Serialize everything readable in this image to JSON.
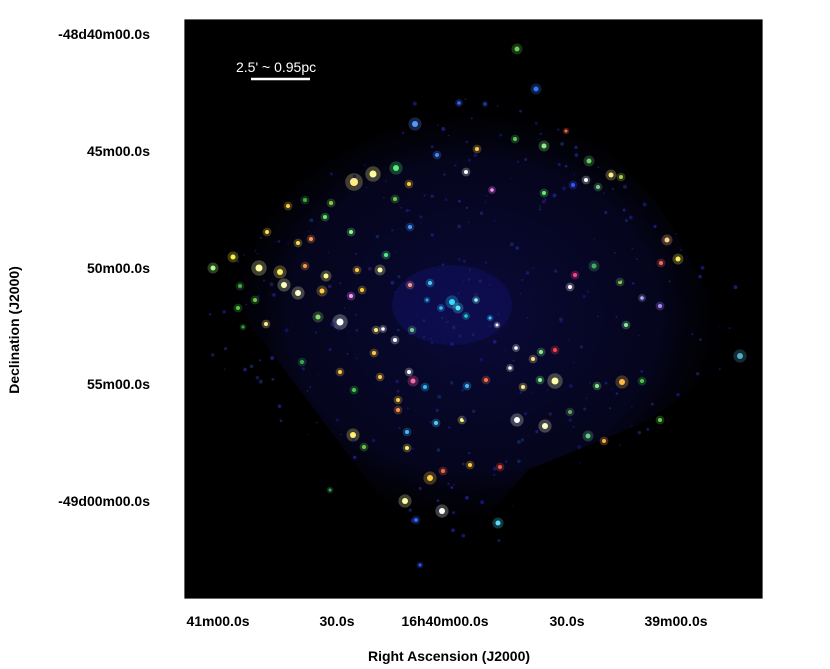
{
  "figure": {
    "x_axis_title": "Right Ascension (J2000)",
    "y_axis_title": "Declination (J2000)",
    "x_tick_labels": [
      "41m00.0s",
      "30.0s",
      "16h40m00.0s",
      "30.0s",
      "39m00.0s"
    ],
    "y_tick_labels": [
      "-48d40m00.0s",
      "45m00.0s",
      "50m00.0s",
      "55m00.0s",
      "-49d00m00.0s"
    ],
    "scalebar_label": "2.5' ~ 0.95pc",
    "colors": {
      "background": "#000000",
      "frame": "#000000",
      "scalebar": "#ffffff",
      "diffuse_emission": "#0a0a3c"
    }
  }
}
